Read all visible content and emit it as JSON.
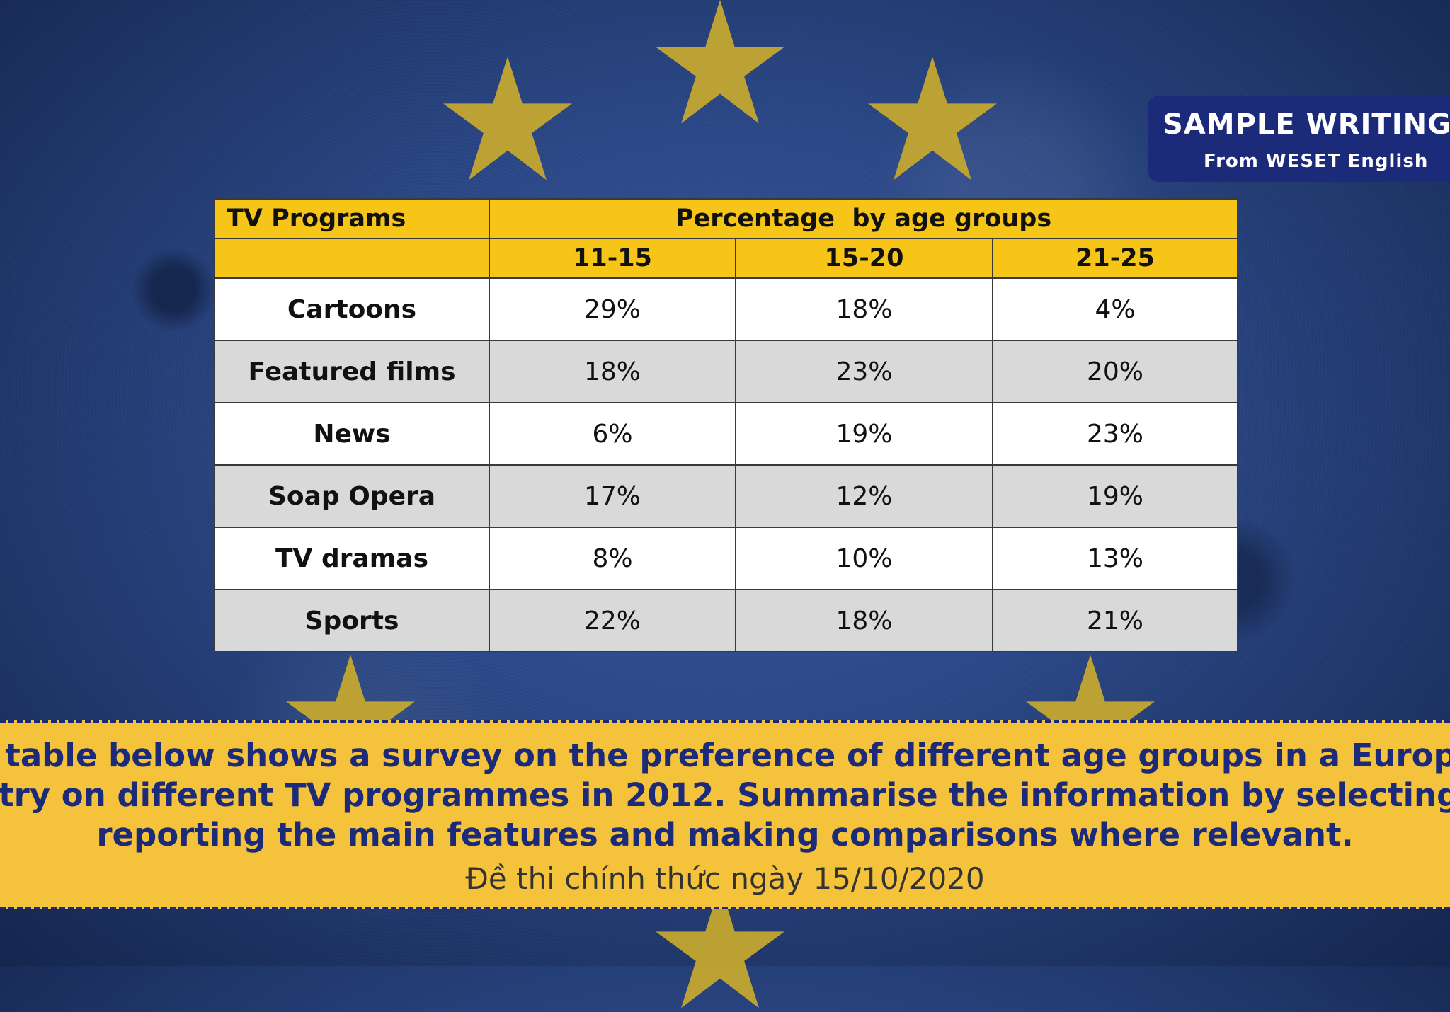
{
  "badge": {
    "title": "SAMPLE WRITING",
    "subtitle": "From WESET English"
  },
  "chart_data": {
    "type": "table",
    "header_left": "TV Programs",
    "header_group": "Percentage  by age groups",
    "columns": [
      "11-15",
      "15-20",
      "21-25"
    ],
    "rows": [
      {
        "label": "Cartoons",
        "values": [
          "29%",
          "18%",
          "4%"
        ]
      },
      {
        "label": "Featured films",
        "values": [
          "18%",
          "23%",
          "20%"
        ]
      },
      {
        "label": "News",
        "values": [
          "6%",
          "19%",
          "23%"
        ]
      },
      {
        "label": "Soap Opera",
        "values": [
          "17%",
          "12%",
          "19%"
        ]
      },
      {
        "label": "TV dramas",
        "values": [
          "8%",
          "10%",
          "13%"
        ]
      },
      {
        "label": "Sports",
        "values": [
          "22%",
          "18%",
          "21%"
        ]
      }
    ]
  },
  "banner": {
    "line1": "The table below shows a survey on the preference of different age groups in a European",
    "line2": "country on different TV programmes in 2012. Summarise the information by selecting and",
    "line3": "reporting the main features and making comparisons where relevant.",
    "date": "Đề thi chính thức ngày 15/10/2020"
  },
  "colors": {
    "header_yellow": "#f7c518",
    "banner_yellow": "#f5c23b",
    "navy": "#1c2a7a",
    "star_gold": "#c9a92e"
  }
}
